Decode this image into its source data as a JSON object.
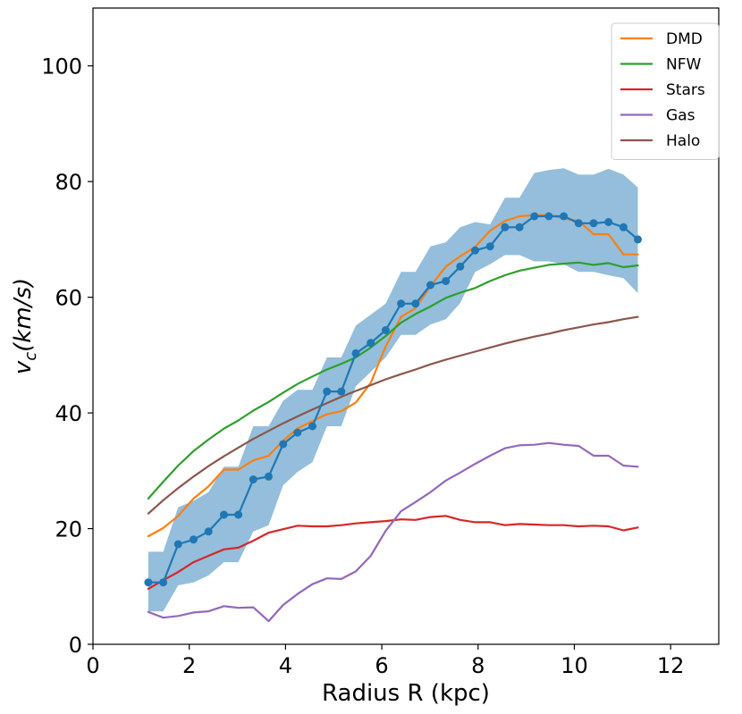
{
  "chart_data": {
    "type": "line",
    "xlabel": "Radius R (kpc)",
    "ylabel_main": "v",
    "ylabel_sub": "c",
    "ylabel_rest": "(km/s)",
    "xlim": [
      0,
      13
    ],
    "ylim": [
      0,
      110
    ],
    "xticks": [
      0,
      2,
      4,
      6,
      8,
      10,
      12
    ],
    "yticks": [
      0,
      20,
      40,
      60,
      80,
      100
    ],
    "grid": false,
    "legend_position": "top-right",
    "x": [
      1.15,
      1.46,
      1.77,
      2.09,
      2.4,
      2.72,
      3.02,
      3.33,
      3.65,
      3.95,
      4.25,
      4.56,
      4.86,
      5.16,
      5.46,
      5.77,
      6.08,
      6.4,
      6.7,
      7.01,
      7.33,
      7.63,
      7.94,
      8.25,
      8.56,
      8.86,
      9.17,
      9.47,
      9.78,
      10.09,
      10.4,
      10.71,
      11.02,
      11.32
    ],
    "observed": {
      "color": "#1f77b4",
      "band_color": "#94bedb",
      "values": [
        10.7,
        10.7,
        17.3,
        18.1,
        19.5,
        22.4,
        22.4,
        28.5,
        29.0,
        34.6,
        36.6,
        37.7,
        43.7,
        43.7,
        50.3,
        52.1,
        54.3,
        58.9,
        58.9,
        62.1,
        62.8,
        65.3,
        68.1,
        68.8,
        72.1,
        72.1,
        74.0,
        74.0,
        74.0,
        72.8,
        72.8,
        73.0,
        72.1,
        70.0
      ],
      "upper": [
        16.0,
        16.0,
        23.7,
        24.8,
        26.3,
        30.7,
        30.7,
        37.7,
        37.7,
        42.1,
        44.0,
        44.0,
        49.6,
        49.6,
        55.1,
        57.0,
        58.9,
        64.4,
        64.4,
        68.8,
        69.5,
        72.1,
        73.0,
        72.6,
        77.2,
        77.2,
        81.5,
        82.0,
        82.3,
        81.2,
        81.2,
        82.2,
        81.2,
        79.0
      ],
      "lower": [
        5.7,
        5.7,
        10.2,
        10.7,
        11.9,
        14.2,
        14.2,
        19.5,
        20.6,
        27.5,
        29.8,
        31.5,
        37.7,
        37.7,
        44.6,
        47.1,
        49.6,
        53.5,
        53.5,
        55.3,
        56.2,
        59.0,
        64.4,
        65.7,
        67.3,
        67.3,
        66.2,
        66.2,
        65.7,
        64.4,
        64.4,
        63.8,
        63.3,
        60.7
      ]
    },
    "series": [
      {
        "name": "DMD",
        "color": "#ff7f0e",
        "values": [
          18.7,
          20.1,
          22.2,
          25.2,
          27.3,
          30.2,
          30.2,
          31.8,
          32.6,
          35.2,
          37.3,
          38.6,
          39.8,
          40.3,
          41.8,
          45.2,
          51.5,
          56.6,
          58.1,
          61.9,
          65.3,
          67.1,
          68.7,
          71.5,
          73.2,
          74.0,
          74.2,
          74.2,
          73.6,
          73.2,
          70.9,
          70.9,
          67.4,
          67.4
        ]
      },
      {
        "name": "NFW",
        "color": "#2ca02c",
        "values": [
          25.2,
          28.1,
          30.9,
          33.4,
          35.4,
          37.3,
          38.7,
          40.4,
          41.9,
          43.5,
          45.0,
          46.3,
          47.5,
          48.5,
          49.6,
          51.3,
          53.3,
          55.6,
          57.1,
          58.4,
          59.9,
          60.8,
          61.6,
          62.8,
          63.8,
          64.6,
          65.1,
          65.6,
          65.8,
          66.0,
          65.6,
          65.9,
          65.2,
          65.5
        ]
      },
      {
        "name": "Stars",
        "color": "#d62728",
        "values": [
          9.6,
          11.1,
          12.5,
          14.2,
          15.3,
          16.4,
          16.7,
          17.9,
          19.3,
          19.9,
          20.5,
          20.4,
          20.4,
          20.6,
          20.9,
          21.1,
          21.3,
          21.6,
          21.5,
          22.0,
          22.2,
          21.5,
          21.1,
          21.1,
          20.6,
          20.8,
          20.7,
          20.6,
          20.6,
          20.4,
          20.5,
          20.4,
          19.7,
          20.2
        ]
      },
      {
        "name": "Gas",
        "color": "#9467bd",
        "values": [
          5.6,
          4.6,
          4.9,
          5.5,
          5.7,
          6.6,
          6.3,
          6.4,
          4.0,
          6.8,
          8.7,
          10.4,
          11.4,
          11.3,
          12.6,
          15.3,
          19.6,
          23.0,
          24.6,
          26.3,
          28.3,
          29.7,
          31.2,
          32.6,
          33.9,
          34.4,
          34.5,
          34.8,
          34.5,
          34.3,
          32.6,
          32.6,
          30.9,
          30.7
        ]
      },
      {
        "name": "Halo",
        "color": "#8c564b",
        "values": [
          22.6,
          24.9,
          27.0,
          29.0,
          30.8,
          32.5,
          34.0,
          35.5,
          36.9,
          38.2,
          39.4,
          40.6,
          41.7,
          42.8,
          43.8,
          44.8,
          45.8,
          46.7,
          47.5,
          48.4,
          49.2,
          49.9,
          50.6,
          51.3,
          52.0,
          52.6,
          53.2,
          53.7,
          54.3,
          54.8,
          55.3,
          55.7,
          56.2,
          56.6
        ]
      }
    ]
  }
}
